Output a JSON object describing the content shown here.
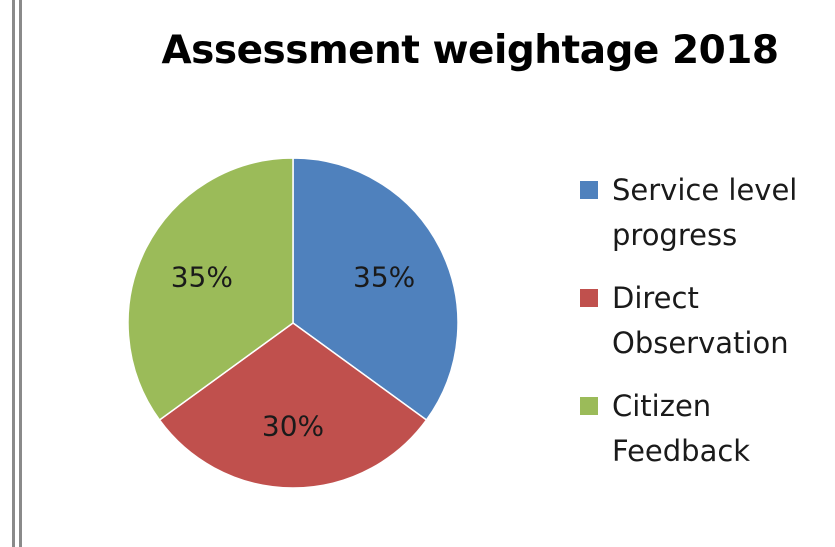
{
  "chart_data": {
    "type": "pie",
    "title": "Assessment weightage 2018",
    "categories": [
      "Service level progress",
      "Direct Observation",
      "Citizen Feedback"
    ],
    "legend_labels": [
      "Service level\nprogress",
      "Direct\nObservation",
      "Citizen\nFeedback"
    ],
    "values": [
      35,
      30,
      35
    ],
    "data_labels": [
      "35%",
      "30%",
      "35%"
    ],
    "colors": [
      "#4F81BD",
      "#C0504D",
      "#9BBB59"
    ],
    "legend_position": "right"
  }
}
